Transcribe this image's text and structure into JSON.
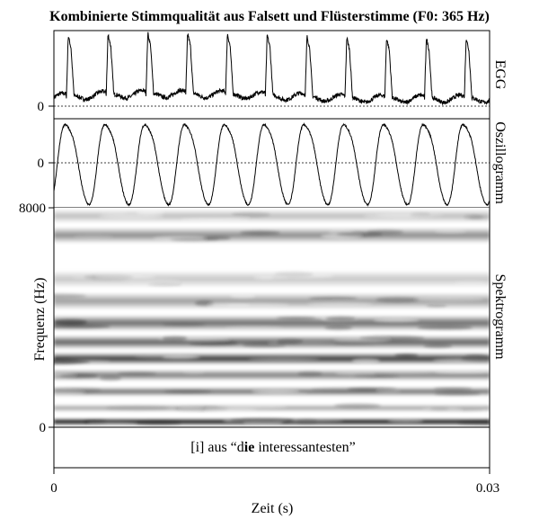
{
  "chart_data": {
    "type": "line",
    "title": "Kombinierte Stimmqualität aus Falsett und Flüsterstimme (F0: 365 Hz)",
    "caption": {
      "prefix": "[i] aus “d",
      "bold": "ie",
      "suffix": " interessantesten”"
    },
    "xlabel": "Zeit (s)",
    "xlim": [
      0,
      0.03
    ],
    "x_ticks": [
      "0",
      "0.03"
    ],
    "f0_hz": 365,
    "panels": [
      {
        "name": "EGG",
        "label": "EGG",
        "zero_label": "0",
        "kind": "egg"
      },
      {
        "name": "Oszillogramm",
        "label": "Oszillogramm",
        "zero_label": "0",
        "kind": "osc"
      },
      {
        "name": "Spektrogramm",
        "label": "Spektrogramm",
        "kind": "spectrogram",
        "ylabel": "Frequenz (Hz)",
        "ylim": [
          0,
          8000
        ],
        "y_ticks": [
          "0",
          "8000"
        ],
        "energy_bands": [
          {
            "freq": 200,
            "darkness": 0.98,
            "width": 140
          },
          {
            "freq": 700,
            "darkness": 0.35,
            "width": 150
          },
          {
            "freq": 1300,
            "darkness": 0.55,
            "width": 180
          },
          {
            "freq": 1900,
            "darkness": 0.5,
            "width": 220
          },
          {
            "freq": 2500,
            "darkness": 0.78,
            "width": 230
          },
          {
            "freq": 3100,
            "darkness": 0.62,
            "width": 260
          },
          {
            "freq": 3800,
            "darkness": 0.58,
            "width": 300
          },
          {
            "freq": 4600,
            "darkness": 0.38,
            "width": 320
          },
          {
            "freq": 5400,
            "darkness": 0.22,
            "width": 320
          },
          {
            "freq": 7000,
            "darkness": 0.45,
            "width": 300
          },
          {
            "freq": 7700,
            "darkness": 0.25,
            "width": 260
          }
        ]
      }
    ]
  }
}
